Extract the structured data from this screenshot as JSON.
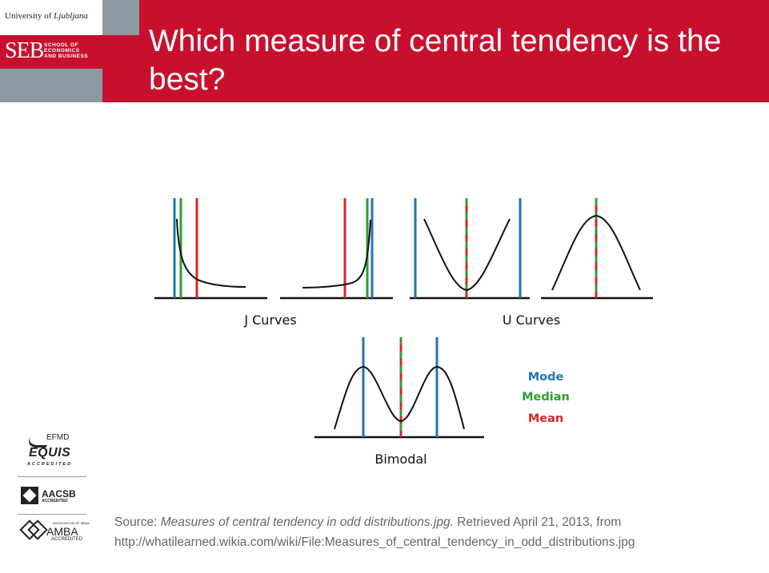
{
  "header": {
    "university": "University of",
    "university_city": "Ljubljana",
    "school_abbr": "SEB",
    "school_line1": "SCHOOL OF",
    "school_line2": "ECONOMICS",
    "school_line3": "AND BUSINESS",
    "title": "Which measure of central tendency is the best?"
  },
  "diagram": {
    "groups": [
      {
        "label": "J Curves"
      },
      {
        "label": "U Curves"
      },
      {
        "label": "Bimodal"
      }
    ],
    "legend": [
      {
        "label": "Mode",
        "color": "#1f77b4"
      },
      {
        "label": "Median",
        "color": "#2ca02c"
      },
      {
        "label": "Mean",
        "color": "#d62728"
      }
    ]
  },
  "accreditations": {
    "equis_top": "EFMD",
    "equis": "EQUIS",
    "equis_sub": "ACCREDITED",
    "aacsb": "AACSB",
    "aacsb_sub": "ACCREDITED",
    "amba_small": "ASSOCIATION OF MBAs",
    "amba": "AMBA",
    "amba_sub": "ACCREDITED"
  },
  "source": {
    "prefix": "Source: ",
    "title": "Measures of central tendency in odd distributions.jpg.",
    "retrieved": " Retrieved April 21, 2013, from",
    "url": "http://whatilearned.wikia.com/wiki/File:Measures_of_central_tendency_in_odd_distributions.jpg"
  },
  "colors": {
    "brand_red": "#c8102e",
    "brand_grey": "#8c9aa3",
    "mode": "#1f77b4",
    "median": "#2ca02c",
    "mean": "#d62728"
  }
}
